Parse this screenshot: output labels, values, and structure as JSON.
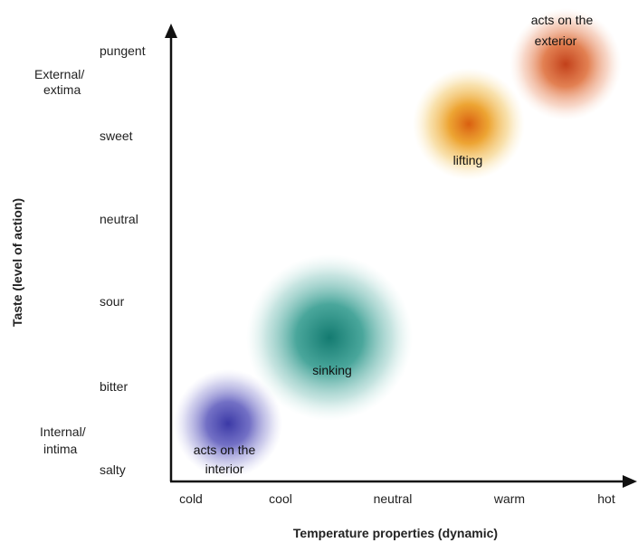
{
  "x_axis": {
    "title": "Temperature properties (dynamic)",
    "ticks": [
      "cold",
      "cool",
      "neutral",
      "warm",
      "hot"
    ]
  },
  "y_axis": {
    "title": "Taste (level of action)",
    "ticks": [
      "salty",
      "bitter",
      "sour",
      "neutral",
      "sweet",
      "pungent"
    ],
    "zone_top": [
      "External/",
      "extima"
    ],
    "zone_bottom": [
      "Internal/",
      "intima"
    ]
  },
  "blobs": [
    {
      "id": "interior",
      "label": [
        "acts on the",
        "interior"
      ],
      "color": "#3d3aa8"
    },
    {
      "id": "sinking",
      "label": [
        "sinking"
      ],
      "color": "#1f8f83"
    },
    {
      "id": "lifting",
      "label": [
        "lifting"
      ],
      "color": "#e07a10"
    },
    {
      "id": "exterior",
      "label": [
        "acts on the",
        "exterior"
      ],
      "color": "#d2501a"
    }
  ]
}
